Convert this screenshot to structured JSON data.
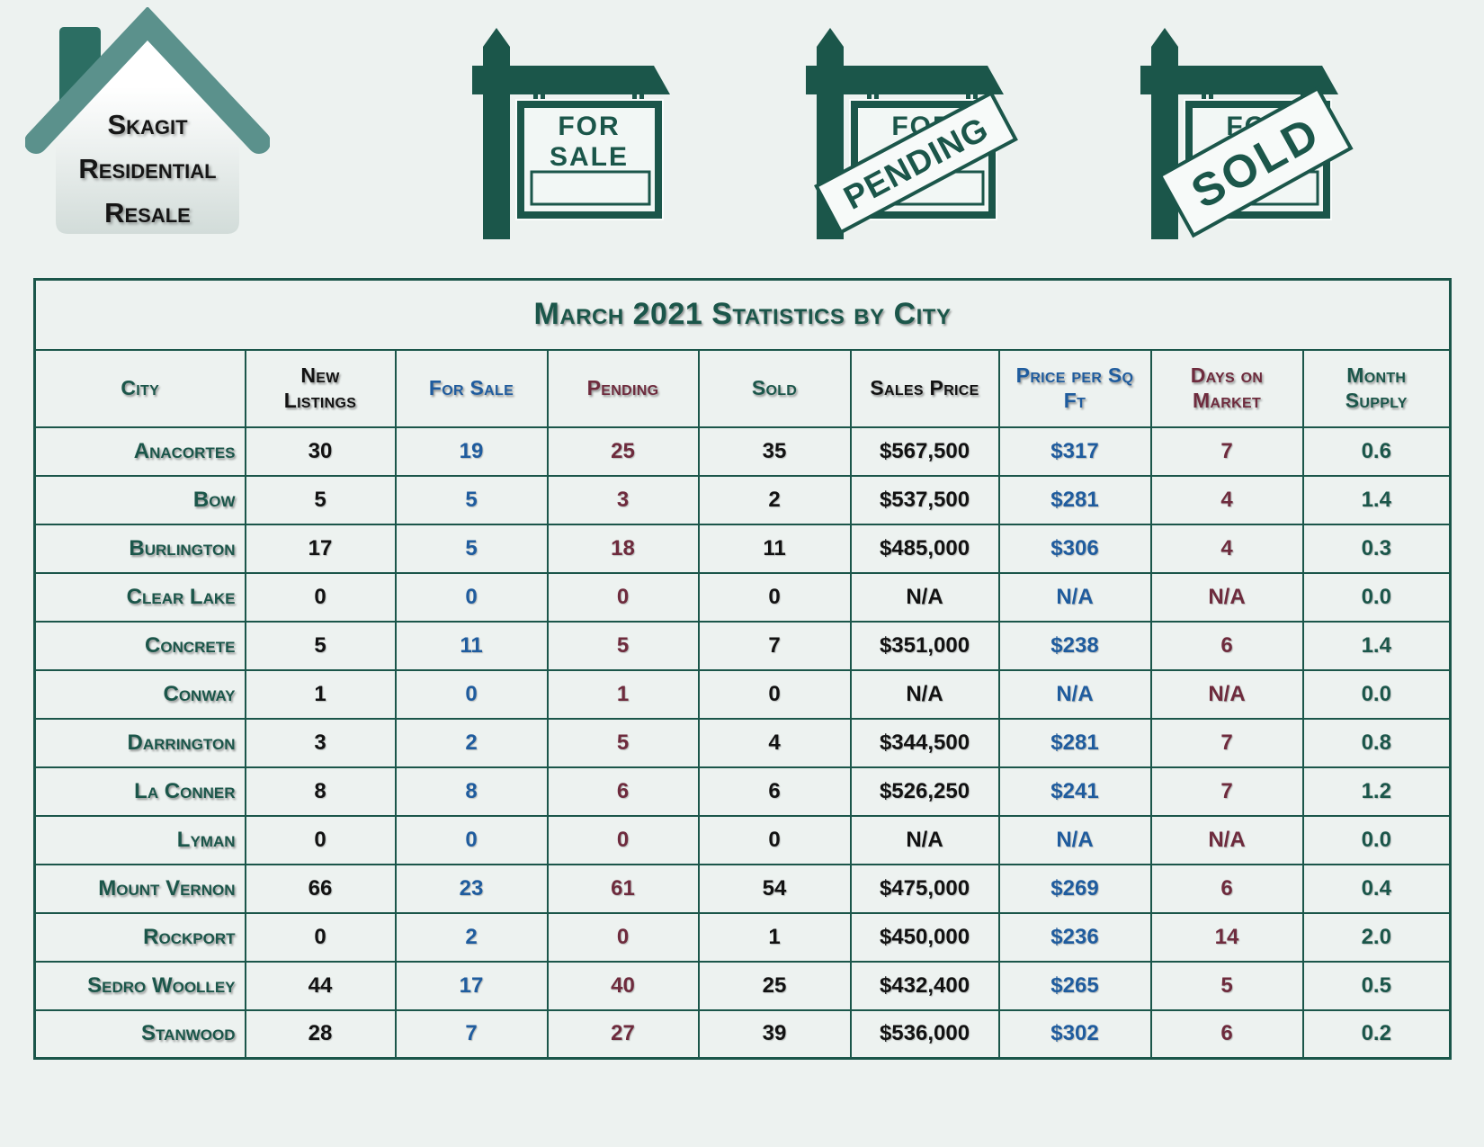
{
  "logo": {
    "line1": "Skagit",
    "line2": "Residential",
    "line3": "Resale"
  },
  "signs": {
    "for_sale": {
      "line1": "FOR",
      "line2": "SALE"
    },
    "pending": {
      "board_line1": "FOR",
      "board_line2": "SALE",
      "banner": "PENDING"
    },
    "sold": {
      "board_line1": "FOR",
      "board_line2": "SALE",
      "banner": "SOLD"
    }
  },
  "table": {
    "title": "March 2021 Statistics by City",
    "columns": [
      {
        "key": "city",
        "label": "City",
        "header_color": "green",
        "value_color": "green"
      },
      {
        "key": "new_listings",
        "label": "New\nListings",
        "header_color": "black",
        "value_color": "black"
      },
      {
        "key": "for_sale",
        "label": "For Sale",
        "header_color": "blue",
        "value_color": "blue"
      },
      {
        "key": "pending",
        "label": "Pending",
        "header_color": "maroon",
        "value_color": "maroon"
      },
      {
        "key": "sold",
        "label": "Sold",
        "header_color": "green",
        "value_color": "black"
      },
      {
        "key": "sales_price",
        "label": "Sales Price",
        "header_color": "black",
        "value_color": "black"
      },
      {
        "key": "price_per_sqft",
        "label": "Price per Sq\nFt",
        "header_color": "blue",
        "value_color": "blue"
      },
      {
        "key": "days_on_market",
        "label": "Days on\nMarket",
        "header_color": "maroon",
        "value_color": "maroon"
      },
      {
        "key": "month_supply",
        "label": "Month\nSupply",
        "header_color": "green",
        "value_color": "green"
      }
    ],
    "rows": [
      {
        "city": "Anacortes",
        "new_listings": "30",
        "for_sale": "19",
        "pending": "25",
        "sold": "35",
        "sales_price": "$567,500",
        "price_per_sqft": "$317",
        "days_on_market": "7",
        "month_supply": "0.6"
      },
      {
        "city": "Bow",
        "new_listings": "5",
        "for_sale": "5",
        "pending": "3",
        "sold": "2",
        "sales_price": "$537,500",
        "price_per_sqft": "$281",
        "days_on_market": "4",
        "month_supply": "1.4"
      },
      {
        "city": "Burlington",
        "new_listings": "17",
        "for_sale": "5",
        "pending": "18",
        "sold": "11",
        "sales_price": "$485,000",
        "price_per_sqft": "$306",
        "days_on_market": "4",
        "month_supply": "0.3"
      },
      {
        "city": "Clear Lake",
        "new_listings": "0",
        "for_sale": "0",
        "pending": "0",
        "sold": "0",
        "sales_price": "N/A",
        "price_per_sqft": "N/A",
        "days_on_market": "N/A",
        "month_supply": "0.0"
      },
      {
        "city": "Concrete",
        "new_listings": "5",
        "for_sale": "11",
        "pending": "5",
        "sold": "7",
        "sales_price": "$351,000",
        "price_per_sqft": "$238",
        "days_on_market": "6",
        "month_supply": "1.4"
      },
      {
        "city": "Conway",
        "new_listings": "1",
        "for_sale": "0",
        "pending": "1",
        "sold": "0",
        "sales_price": "N/A",
        "price_per_sqft": "N/A",
        "days_on_market": "N/A",
        "month_supply": "0.0"
      },
      {
        "city": "Darrington",
        "new_listings": "3",
        "for_sale": "2",
        "pending": "5",
        "sold": "4",
        "sales_price": "$344,500",
        "price_per_sqft": "$281",
        "days_on_market": "7",
        "month_supply": "0.8"
      },
      {
        "city": "La Conner",
        "new_listings": "8",
        "for_sale": "8",
        "pending": "6",
        "sold": "6",
        "sales_price": "$526,250",
        "price_per_sqft": "$241",
        "days_on_market": "7",
        "month_supply": "1.2"
      },
      {
        "city": "Lyman",
        "new_listings": "0",
        "for_sale": "0",
        "pending": "0",
        "sold": "0",
        "sales_price": "N/A",
        "price_per_sqft": "N/A",
        "days_on_market": "N/A",
        "month_supply": "0.0"
      },
      {
        "city": "Mount Vernon",
        "new_listings": "66",
        "for_sale": "23",
        "pending": "61",
        "sold": "54",
        "sales_price": "$475,000",
        "price_per_sqft": "$269",
        "days_on_market": "6",
        "month_supply": "0.4"
      },
      {
        "city": "Rockport",
        "new_listings": "0",
        "for_sale": "2",
        "pending": "0",
        "sold": "1",
        "sales_price": "$450,000",
        "price_per_sqft": "$236",
        "days_on_market": "14",
        "month_supply": "2.0"
      },
      {
        "city": "Sedro Woolley",
        "new_listings": "44",
        "for_sale": "17",
        "pending": "40",
        "sold": "25",
        "sales_price": "$432,400",
        "price_per_sqft": "$265",
        "days_on_market": "5",
        "month_supply": "0.5"
      },
      {
        "city": "Stanwood",
        "new_listings": "28",
        "for_sale": "7",
        "pending": "27",
        "sold": "39",
        "sales_price": "$536,000",
        "price_per_sqft": "$302",
        "days_on_market": "6",
        "month_supply": "0.2"
      }
    ]
  },
  "colors": {
    "dark_green": "#1b564a",
    "teal_roof": "#5b918c",
    "teal_chimney": "#2c6e63",
    "blue": "#1f5c9e",
    "maroon": "#6e2b3d",
    "text_black": "#121212",
    "page_bg": "#edf2f0",
    "panel_bg": "#f2f7f5",
    "banner_bg": "#f7faf9"
  }
}
